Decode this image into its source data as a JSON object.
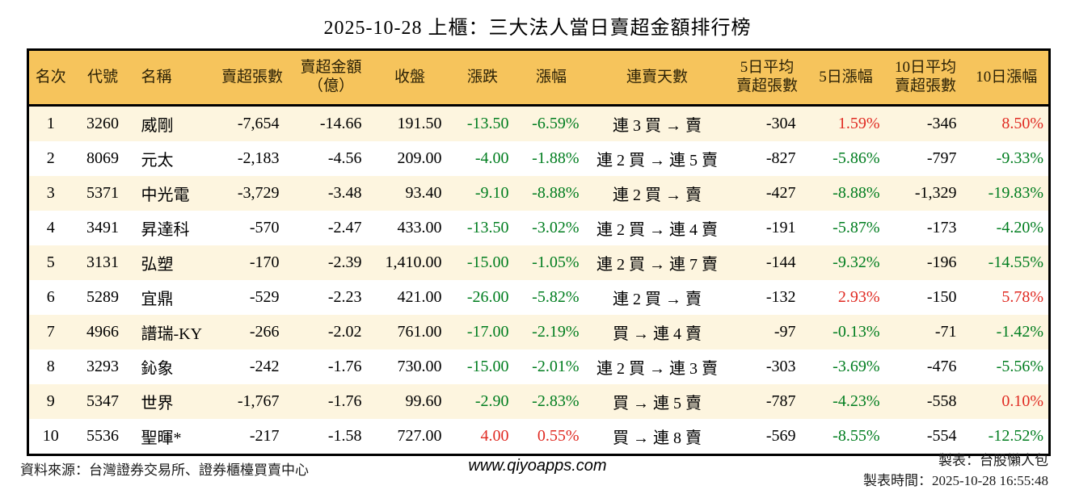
{
  "title": "2025-10-28 上櫃：三大法人當日賣超金額排行榜",
  "colors": {
    "header_bg": "#f6c45c",
    "row_alt_bg": "#fdf5df",
    "up_red": "#e02a22",
    "down_green": "#007d1f",
    "border": "#000000"
  },
  "table": {
    "headers": [
      "名次",
      "代號",
      "名稱",
      "賣超張數",
      "賣超金額\n（億）",
      "收盤",
      "漲跌",
      "漲幅",
      "連賣天數",
      "5日平均\n賣超張數",
      "5日漲幅",
      "10日平均\n賣超張數",
      "10日漲幅"
    ],
    "rows": [
      {
        "rank": "1",
        "code": "3260",
        "name": "威剛",
        "sell_vol": "-7,654",
        "sell_amt": "-14.66",
        "close": "191.50",
        "change": "-13.50",
        "change_pct": "-6.59%",
        "change_dir": "down",
        "streak": "連 3 買 → 賣",
        "avg5": "-304",
        "pct5": "1.59%",
        "pct5_dir": "up",
        "avg10": "-346",
        "pct10": "8.50%",
        "pct10_dir": "up"
      },
      {
        "rank": "2",
        "code": "8069",
        "name": "元太",
        "sell_vol": "-2,183",
        "sell_amt": "-4.56",
        "close": "209.00",
        "change": "-4.00",
        "change_pct": "-1.88%",
        "change_dir": "down",
        "streak": "連 2 買 → 連 5 賣",
        "avg5": "-827",
        "pct5": "-5.86%",
        "pct5_dir": "down",
        "avg10": "-797",
        "pct10": "-9.33%",
        "pct10_dir": "down"
      },
      {
        "rank": "3",
        "code": "5371",
        "name": "中光電",
        "sell_vol": "-3,729",
        "sell_amt": "-3.48",
        "close": "93.40",
        "change": "-9.10",
        "change_pct": "-8.88%",
        "change_dir": "down",
        "streak": "連 2 買 → 賣",
        "avg5": "-427",
        "pct5": "-8.88%",
        "pct5_dir": "down",
        "avg10": "-1,329",
        "pct10": "-19.83%",
        "pct10_dir": "down"
      },
      {
        "rank": "4",
        "code": "3491",
        "name": "昇達科",
        "sell_vol": "-570",
        "sell_amt": "-2.47",
        "close": "433.00",
        "change": "-13.50",
        "change_pct": "-3.02%",
        "change_dir": "down",
        "streak": "連 2 買 → 連 4 賣",
        "avg5": "-191",
        "pct5": "-5.87%",
        "pct5_dir": "down",
        "avg10": "-173",
        "pct10": "-4.20%",
        "pct10_dir": "down"
      },
      {
        "rank": "5",
        "code": "3131",
        "name": "弘塑",
        "sell_vol": "-170",
        "sell_amt": "-2.39",
        "close": "1,410.00",
        "change": "-15.00",
        "change_pct": "-1.05%",
        "change_dir": "down",
        "streak": "連 2 買 → 連 7 賣",
        "avg5": "-144",
        "pct5": "-9.32%",
        "pct5_dir": "down",
        "avg10": "-196",
        "pct10": "-14.55%",
        "pct10_dir": "down"
      },
      {
        "rank": "6",
        "code": "5289",
        "name": "宜鼎",
        "sell_vol": "-529",
        "sell_amt": "-2.23",
        "close": "421.00",
        "change": "-26.00",
        "change_pct": "-5.82%",
        "change_dir": "down",
        "streak": "連 2 買 → 賣",
        "avg5": "-132",
        "pct5": "2.93%",
        "pct5_dir": "up",
        "avg10": "-150",
        "pct10": "5.78%",
        "pct10_dir": "up"
      },
      {
        "rank": "7",
        "code": "4966",
        "name": "譜瑞-KY",
        "sell_vol": "-266",
        "sell_amt": "-2.02",
        "close": "761.00",
        "change": "-17.00",
        "change_pct": "-2.19%",
        "change_dir": "down",
        "streak": "買 → 連 4 賣",
        "avg5": "-97",
        "pct5": "-0.13%",
        "pct5_dir": "down",
        "avg10": "-71",
        "pct10": "-1.42%",
        "pct10_dir": "down"
      },
      {
        "rank": "8",
        "code": "3293",
        "name": "鈊象",
        "sell_vol": "-242",
        "sell_amt": "-1.76",
        "close": "730.00",
        "change": "-15.00",
        "change_pct": "-2.01%",
        "change_dir": "down",
        "streak": "連 2 買 → 連 3 賣",
        "avg5": "-303",
        "pct5": "-3.69%",
        "pct5_dir": "down",
        "avg10": "-476",
        "pct10": "-5.56%",
        "pct10_dir": "down"
      },
      {
        "rank": "9",
        "code": "5347",
        "name": "世界",
        "sell_vol": "-1,767",
        "sell_amt": "-1.76",
        "close": "99.60",
        "change": "-2.90",
        "change_pct": "-2.83%",
        "change_dir": "down",
        "streak": "買 → 連 5 賣",
        "avg5": "-787",
        "pct5": "-4.23%",
        "pct5_dir": "down",
        "avg10": "-558",
        "pct10": "0.10%",
        "pct10_dir": "up"
      },
      {
        "rank": "10",
        "code": "5536",
        "name": "聖暉*",
        "sell_vol": "-217",
        "sell_amt": "-1.58",
        "close": "727.00",
        "change": "4.00",
        "change_pct": "0.55%",
        "change_dir": "up",
        "streak": "買 → 連 8 賣",
        "avg5": "-569",
        "pct5": "-8.55%",
        "pct5_dir": "down",
        "avg10": "-554",
        "pct10": "-12.52%",
        "pct10_dir": "down"
      }
    ]
  },
  "footer": {
    "source": "資料來源：台灣證券交易所、證券櫃檯買賣中心",
    "website": "www.qiyoapps.com",
    "maker": "製表：台股懶人包",
    "made_at": "製表時間：2025-10-28 16:55:48"
  }
}
